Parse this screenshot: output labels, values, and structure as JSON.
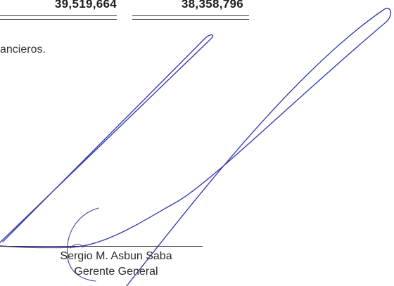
{
  "totals": {
    "value_a": "39,519,664",
    "value_b": "38,358,796"
  },
  "note": "ancieros.",
  "signature": {
    "ink_color": "#3a3fb0",
    "name": "Sergio M. Asbun Saba",
    "title": "Gerente General"
  }
}
